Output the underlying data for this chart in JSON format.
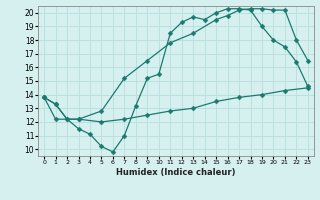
{
  "xlabel": "Humidex (Indice chaleur)",
  "bg_color": "#d6f0f0",
  "grid_color": "#b8dede",
  "line_color": "#1a7a6e",
  "xlim": [
    -0.5,
    23.5
  ],
  "ylim": [
    9.5,
    20.5
  ],
  "xticks": [
    0,
    1,
    2,
    3,
    4,
    5,
    6,
    7,
    8,
    9,
    10,
    11,
    12,
    13,
    14,
    15,
    16,
    17,
    18,
    19,
    20,
    21,
    22,
    23
  ],
  "yticks": [
    10,
    11,
    12,
    13,
    14,
    15,
    16,
    17,
    18,
    19,
    20
  ],
  "line1_x": [
    0,
    1,
    2,
    3,
    4,
    5,
    6,
    7,
    8,
    9,
    10,
    11,
    12,
    13,
    14,
    15,
    16,
    17,
    18,
    19,
    20,
    21,
    22,
    23
  ],
  "line1_y": [
    13.8,
    13.3,
    12.2,
    11.5,
    11.1,
    10.2,
    9.8,
    11.0,
    13.2,
    15.2,
    15.5,
    18.5,
    19.3,
    19.7,
    19.5,
    20.0,
    20.3,
    20.3,
    20.2,
    19.0,
    18.0,
    17.5,
    16.4,
    14.6
  ],
  "line2_x": [
    0,
    1,
    2,
    3,
    5,
    7,
    9,
    11,
    13,
    15,
    16,
    17,
    18,
    19,
    20,
    21,
    22,
    23
  ],
  "line2_y": [
    13.8,
    13.3,
    12.2,
    12.2,
    12.8,
    15.2,
    16.5,
    17.8,
    18.5,
    19.5,
    19.8,
    20.2,
    20.3,
    20.3,
    20.2,
    20.2,
    18.0,
    16.5
  ],
  "line3_x": [
    0,
    1,
    3,
    5,
    7,
    9,
    11,
    13,
    15,
    17,
    19,
    21,
    23
  ],
  "line3_y": [
    13.8,
    12.2,
    12.2,
    12.0,
    12.2,
    12.5,
    12.8,
    13.0,
    13.5,
    13.8,
    14.0,
    14.3,
    14.5
  ]
}
